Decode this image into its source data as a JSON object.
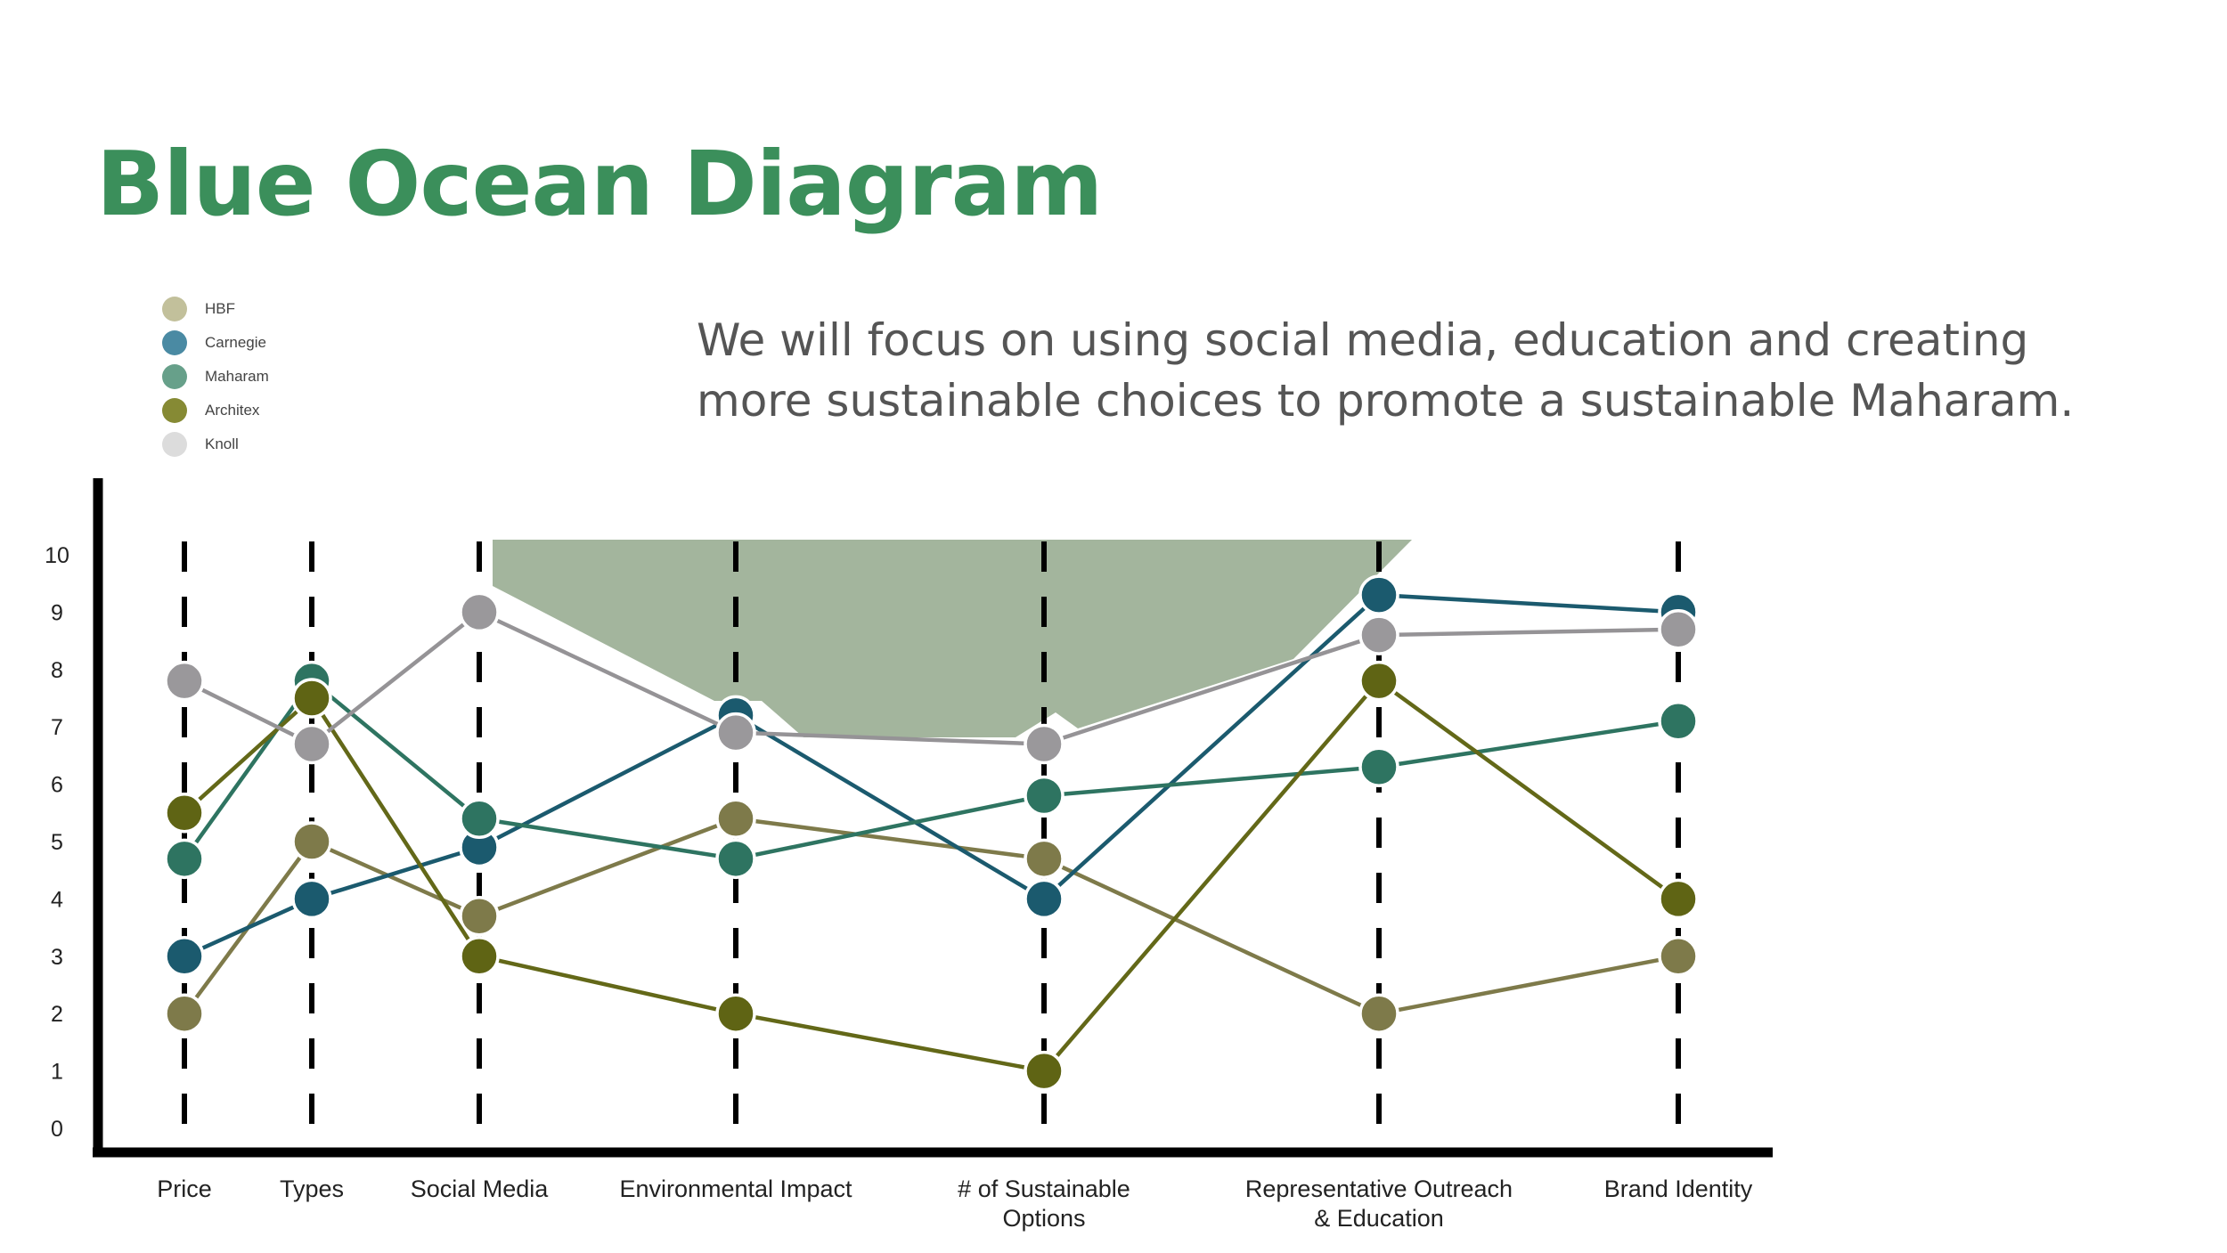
{
  "page": {
    "title": "Blue Ocean Diagram",
    "subtitle": "We will focus on using social media, education and creating more sustainable choices to promote a sustainable Maharam."
  },
  "colors": {
    "title": "#3b8f5b",
    "highlight_area": "#a3b59d",
    "axis": "#000000"
  },
  "legend": [
    {
      "name": "HBF",
      "color": "#c2c09b"
    },
    {
      "name": "Carnegie",
      "color": "#4a8aa3"
    },
    {
      "name": "Maharam",
      "color": "#67a08a"
    },
    {
      "name": "Architex",
      "color": "#868a34"
    },
    {
      "name": "Knoll",
      "color": "#dcdcdc"
    }
  ],
  "chart_data": {
    "type": "line",
    "categories": [
      "Price",
      "Types",
      "Social Media",
      "Environmental Impact",
      "# of Sustainable\nOptions",
      "Representative Outreach\n&  Education",
      "Brand Identity"
    ],
    "y_ticks": [
      0,
      1,
      2,
      3,
      4,
      5,
      6,
      7,
      8,
      9,
      10
    ],
    "ylim": [
      0,
      10.5
    ],
    "grid": "dashed vertical lines per category",
    "series": [
      {
        "name": "HBF",
        "line_color": "#7e7a4a",
        "dot_color": "#7e7a4a",
        "values": [
          2,
          5,
          3.7,
          5.4,
          4.7,
          2,
          3
        ]
      },
      {
        "name": "Carnegie",
        "line_color": "#1b5a6e",
        "dot_color": "#1b5a6e",
        "values": [
          3,
          4,
          4.9,
          7.2,
          4,
          9.3,
          9
        ]
      },
      {
        "name": "Maharam",
        "line_color": "#2e7461",
        "dot_color": "#2e7461",
        "values": [
          4.7,
          7.8,
          5.4,
          4.7,
          5.8,
          6.3,
          7.1
        ]
      },
      {
        "name": "Architex",
        "line_color": "#636818",
        "dot_color": "#5f6414",
        "values": [
          5.5,
          7.5,
          3,
          2,
          1,
          7.8,
          4
        ]
      },
      {
        "name": "Knoll",
        "line_color": "#959396",
        "dot_color": "#9a989b",
        "values": [
          7.8,
          6.7,
          9,
          6.9,
          6.7,
          8.6,
          8.7
        ]
      }
    ]
  }
}
